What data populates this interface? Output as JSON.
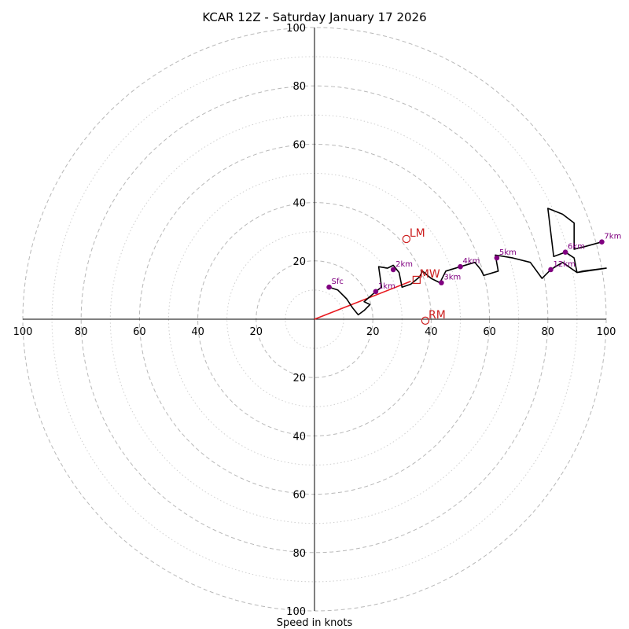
{
  "chart_data": {
    "type": "hodograph",
    "title": "KCAR 12Z - Saturday January 17 2026",
    "xlabel": "Speed in knots",
    "units": "knots",
    "range": [
      -100,
      100
    ],
    "ring_major": [
      20,
      40,
      60,
      80,
      100
    ],
    "ring_minor": [
      10,
      30,
      50,
      70,
      90
    ],
    "tick_labels": {
      "x_left": [
        "100",
        "80",
        "60",
        "40",
        "20"
      ],
      "x_right": [
        "20",
        "40",
        "60",
        "80",
        "100"
      ],
      "y_up": [
        "100",
        "80",
        "60",
        "40",
        "20"
      ],
      "y_down": [
        "20",
        "40",
        "60",
        "80",
        "100"
      ]
    },
    "trace": [
      [
        5,
        11
      ],
      [
        8,
        10
      ],
      [
        11,
        7
      ],
      [
        13,
        4
      ],
      [
        15,
        1.5
      ],
      [
        17,
        3
      ],
      [
        19,
        5
      ],
      [
        17,
        6
      ],
      [
        21,
        9.5
      ],
      [
        23,
        11
      ],
      [
        22,
        18
      ],
      [
        25,
        17.5
      ],
      [
        27,
        18.5
      ],
      [
        29,
        16
      ],
      [
        30,
        11
      ],
      [
        33,
        12
      ],
      [
        36,
        14.5
      ],
      [
        37,
        16.5
      ],
      [
        40,
        14
      ],
      [
        43,
        12.5
      ],
      [
        45,
        16.5
      ],
      [
        50,
        18
      ],
      [
        55,
        19.5
      ],
      [
        57,
        17
      ],
      [
        58,
        15
      ],
      [
        63,
        16.5
      ],
      [
        62,
        22
      ],
      [
        68,
        21
      ],
      [
        74,
        19.5
      ],
      [
        78,
        14
      ],
      [
        81,
        17
      ],
      [
        85,
        19.5
      ],
      [
        90,
        16
      ],
      [
        92,
        16.5
      ],
      [
        100,
        17.5
      ],
      [
        90,
        16
      ],
      [
        89,
        21
      ],
      [
        86,
        23
      ],
      [
        82,
        21.5
      ],
      [
        80,
        38
      ],
      [
        85,
        36
      ],
      [
        89,
        33
      ],
      [
        89,
        24
      ],
      [
        93,
        25
      ],
      [
        98.5,
        26.5
      ]
    ],
    "height_markers": [
      {
        "label": "Sfc",
        "u": 5,
        "v": 11
      },
      {
        "label": "1km",
        "u": 21,
        "v": 9.5
      },
      {
        "label": "2km",
        "u": 27,
        "v": 17
      },
      {
        "label": "3km",
        "u": 43.5,
        "v": 12.5
      },
      {
        "label": "4km",
        "u": 50,
        "v": 18
      },
      {
        "label": "5km",
        "u": 62.5,
        "v": 21
      },
      {
        "label": "6km",
        "u": 86,
        "v": 23
      },
      {
        "label": "7km",
        "u": 98.5,
        "v": 26.5
      },
      {
        "label": "12km",
        "u": 81,
        "v": 17
      }
    ],
    "motion_points": [
      {
        "label": "LM",
        "u": 31.5,
        "v": 27.5,
        "marker": "circle"
      },
      {
        "label": "MW",
        "u": 35,
        "v": 13.5,
        "marker": "square"
      },
      {
        "label": "RM",
        "u": 38,
        "v": -0.5,
        "marker": "circle"
      }
    ],
    "shear_vector": {
      "from": [
        0,
        0
      ],
      "to": [
        33,
        13
      ]
    },
    "colors": {
      "trace": "#000000",
      "markers": "#800080",
      "motion": "#cc1f1f",
      "shear": "#e8191f",
      "ring_major": "#b8b8b8",
      "ring_minor": "#cfcfcf"
    }
  }
}
